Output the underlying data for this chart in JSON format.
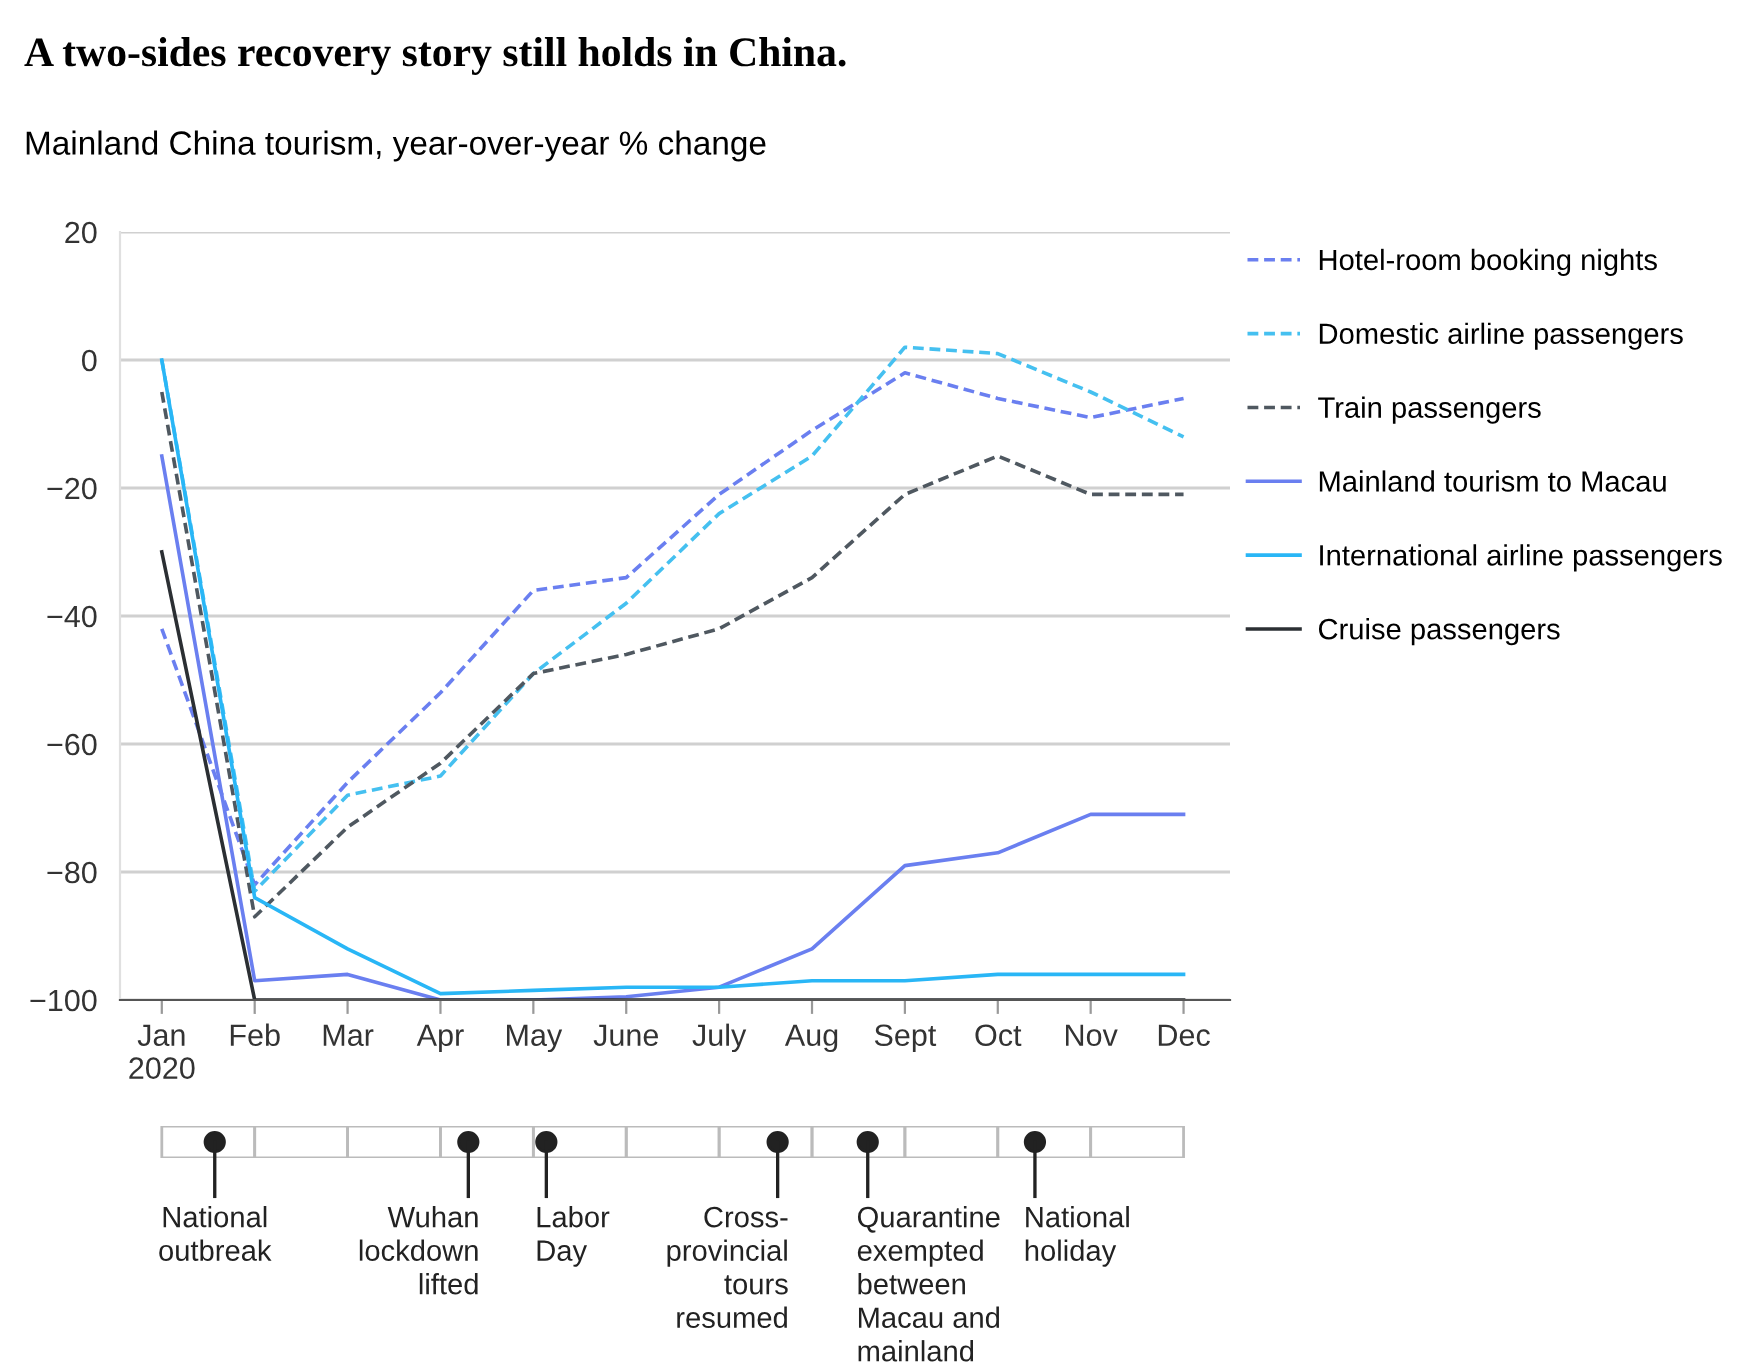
{
  "chart_data": {
    "type": "line",
    "title": "A two-sides recovery story still holds in China.",
    "subtitle": "Mainland China tourism, year-over-year % change",
    "categories": [
      "Jan\n2020",
      "Feb",
      "Mar",
      "Apr",
      "May",
      "June",
      "July",
      "Aug",
      "Sept",
      "Oct",
      "Nov",
      "Dec"
    ],
    "series": [
      {
        "name": "Hotel-room booking nights",
        "color": "#6a7ff0",
        "line_style": "dashed",
        "values": [
          -42,
          -82,
          -66,
          -52,
          -36,
          -34,
          -21,
          -11,
          -2,
          -6,
          -9,
          -6
        ]
      },
      {
        "name": "Domestic airline passengers",
        "color": "#45c0f0",
        "line_style": "dashed",
        "values": [
          0,
          -83,
          -68,
          -65,
          -49,
          -38,
          -24,
          -15,
          2,
          1,
          -5,
          -12
        ]
      },
      {
        "name": "Train passengers",
        "color": "#4f5860",
        "line_style": "dashed",
        "values": [
          -5,
          -87,
          -73,
          -63,
          -49,
          -46,
          -42,
          -34,
          -21,
          -15,
          -21,
          -21
        ]
      },
      {
        "name": "Mainland tourism to Macau",
        "color": "#6a7ff0",
        "line_style": "solid",
        "values": [
          -15,
          -97,
          -96,
          -100,
          -100,
          -99.5,
          -98,
          -92,
          -79,
          -77,
          -71,
          -71
        ]
      },
      {
        "name": "International airline passengers",
        "color": "#29b6f6",
        "line_style": "solid",
        "values": [
          0,
          -84,
          -92,
          -99,
          -98.5,
          -98,
          -98,
          -97,
          -97,
          -96,
          -96,
          -96
        ]
      },
      {
        "name": "Cruise passengers",
        "color": "#2b2f33",
        "line_style": "solid",
        "values": [
          -30,
          -100,
          -100,
          -100,
          -100,
          -100,
          -100,
          -100,
          -100,
          -100,
          -100,
          -100
        ]
      }
    ],
    "ylim": [
      -100,
      20
    ],
    "yticks": [
      20,
      0,
      {
        "value": -20,
        "label": "−20"
      },
      {
        "value": -40,
        "label": "−40"
      },
      {
        "value": -60,
        "label": "−60"
      },
      {
        "value": -80,
        "label": "−80"
      },
      {
        "value": -100,
        "label": "−100"
      }
    ],
    "grid": "y",
    "legend": "right",
    "marker": "none",
    "annotations": [
      "National\noutbreak",
      "Wuhan\nlockdown\nlifted",
      "Labor\nDay",
      "Cross-\nprovincial\ntours\nresumed",
      "Quarantine\nexempted\nbetween\nMacau and\nmainland",
      "National\nholiday"
    ]
  }
}
